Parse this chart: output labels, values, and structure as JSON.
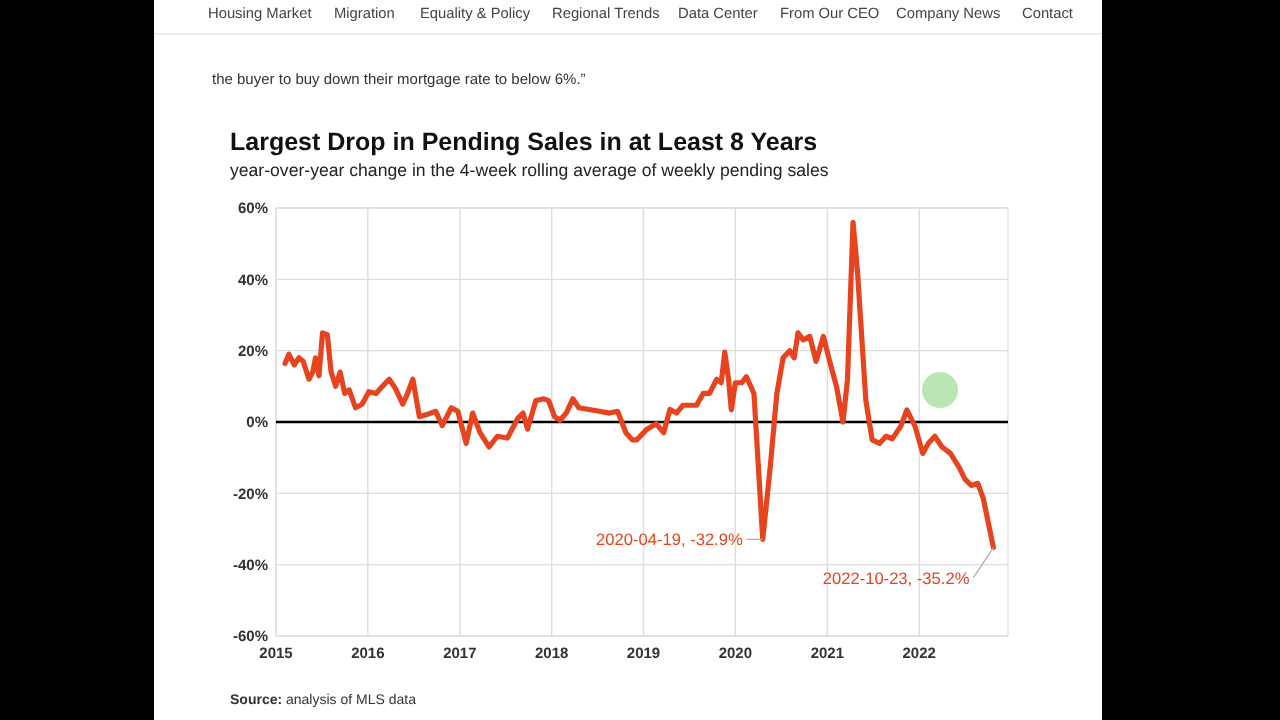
{
  "chart_data": {
    "type": "line",
    "title": "Largest Drop in Pending Sales in at Least 8 Years",
    "subtitle": "year-over-year change in the 4-week rolling average of weekly pending sales",
    "x": [
      "2015-02-06",
      "2015-02-21",
      "2015-03-15",
      "2015-04-02",
      "2015-04-19",
      "2015-05-12",
      "2015-05-27",
      "2015-06-07",
      "2015-06-21",
      "2015-07-05",
      "2015-07-24",
      "2015-08-08",
      "2015-08-26",
      "2015-09-13",
      "2015-10-01",
      "2015-10-19",
      "2015-11-13",
      "2015-12-09",
      "2016-01-05",
      "2016-02-03",
      "2016-02-28",
      "2016-03-26",
      "2016-04-19",
      "2016-05-19",
      "2016-06-07",
      "2016-06-28",
      "2016-07-24",
      "2016-08-19",
      "2016-09-27",
      "2016-10-23",
      "2016-11-28",
      "2016-12-24",
      "2017-01-26",
      "2017-02-21",
      "2017-03-22",
      "2017-04-27",
      "2017-05-30",
      "2017-07-09",
      "2017-08-19",
      "2017-09-09",
      "2017-09-27",
      "2017-10-30",
      "2017-12-01",
      "2017-12-20",
      "2018-01-12",
      "2018-02-03",
      "2018-02-28",
      "2018-03-26",
      "2018-04-19",
      "2018-05-30",
      "2018-07-09",
      "2018-08-19",
      "2018-09-20",
      "2018-10-23",
      "2018-11-17",
      "2018-12-05",
      "2019-01-15",
      "2019-02-21",
      "2019-03-22",
      "2019-04-16",
      "2019-05-12",
      "2019-06-07",
      "2019-07-31",
      "2019-08-26",
      "2019-09-20",
      "2019-10-19",
      "2019-11-06",
      "2019-11-20",
      "2019-12-05",
      "2019-12-16",
      "2020-01-01",
      "2020-01-26",
      "2020-02-14",
      "2020-03-15",
      "2020-04-19",
      "2020-05-19",
      "2020-06-14",
      "2020-07-09",
      "2020-08-04",
      "2020-08-22",
      "2020-09-06",
      "2020-09-27",
      "2020-10-23",
      "2020-11-17",
      "2020-12-16",
      "2021-01-12",
      "2021-02-06",
      "2021-03-04",
      "2021-03-22",
      "2021-04-13",
      "2021-05-01",
      "2021-06-03",
      "2021-06-28",
      "2021-07-27",
      "2021-08-22",
      "2021-09-16",
      "2021-10-19",
      "2021-11-13",
      "2021-12-16",
      "2022-01-15",
      "2022-02-06",
      "2022-03-04",
      "2022-04-02",
      "2022-05-05",
      "2022-06-07",
      "2022-07-02",
      "2022-07-27",
      "2022-08-22",
      "2022-09-13",
      "2022-10-23"
    ],
    "series": [
      {
        "color": "#e8431f",
        "values": [
          16.4,
          19,
          16,
          18,
          17,
          12,
          14,
          18,
          13,
          25,
          24.5,
          14,
          10,
          14,
          8,
          9,
          4,
          5,
          8.5,
          8,
          10,
          12,
          9.5,
          5,
          8,
          12,
          1.5,
          2,
          3,
          -1,
          4,
          3,
          -6,
          2.5,
          -3,
          -7,
          -4,
          -4.5,
          1,
          2.5,
          -2,
          6,
          6.5,
          6,
          1.5,
          0.5,
          2.5,
          6.5,
          4,
          3.5,
          3,
          2.5,
          3,
          -3,
          -5,
          -5,
          -2,
          -0.5,
          -3,
          3.5,
          2.5,
          4.7,
          4.7,
          8,
          8,
          12,
          11,
          19.6,
          12,
          3.4,
          11,
          11,
          12.7,
          8,
          -32.9,
          -12.5,
          8,
          18,
          20,
          18,
          25,
          23,
          24,
          17,
          24,
          16.5,
          10,
          0,
          12,
          56,
          41.7,
          6,
          -5,
          -6,
          -4,
          -4.7,
          -1.3,
          3.4,
          -1.3,
          -8.8,
          -6,
          -4,
          -7,
          -8.8,
          -12.5,
          -16,
          -17.8,
          -17.2,
          -21.5,
          -35.2
        ]
      }
    ],
    "xlim": [
      "2015",
      "2022-12-20"
    ],
    "xticks": [
      {
        "value": "2015",
        "label": "2015"
      },
      {
        "value": "2016",
        "label": "2016"
      },
      {
        "value": "2017",
        "label": "2017"
      },
      {
        "value": "2018",
        "label": "2018"
      },
      {
        "value": "2019",
        "label": "2019"
      },
      {
        "value": "2020",
        "label": "2020"
      },
      {
        "value": "2021",
        "label": "2021"
      },
      {
        "value": "2022",
        "label": "2022"
      }
    ],
    "ylim": [
      -60,
      60
    ],
    "yticks": [
      {
        "value": -60,
        "label": "-60%"
      },
      {
        "value": -40,
        "label": "-40%"
      },
      {
        "value": -20,
        "label": "-20%"
      },
      {
        "value": 0,
        "label": "0%"
      },
      {
        "value": 20,
        "label": "20%"
      },
      {
        "value": 40,
        "label": "40%"
      },
      {
        "value": 60,
        "label": "60%"
      }
    ],
    "grid": true,
    "marker": "none",
    "line_style": "solid",
    "ref_lines": [
      {
        "axis": "y",
        "value": 0,
        "label": null,
        "color": "#000000"
      }
    ],
    "annotations": [
      "Housing Market",
      "Migration",
      "Equality & Policy",
      "Regional Trends",
      "Data Center",
      "From Our CEO",
      "Company News",
      "Contact",
      "the buyer to buy down their mortgage rate to below 6%.”",
      "Source: analysis of MLS data",
      {
        "text": "2020-04-19, -32.9%",
        "x": "2020-04-19",
        "y": -32.9
      },
      {
        "text": "2022-10-23, -35.2%",
        "x": "2022-10-23",
        "y": -35.2
      }
    ]
  }
}
